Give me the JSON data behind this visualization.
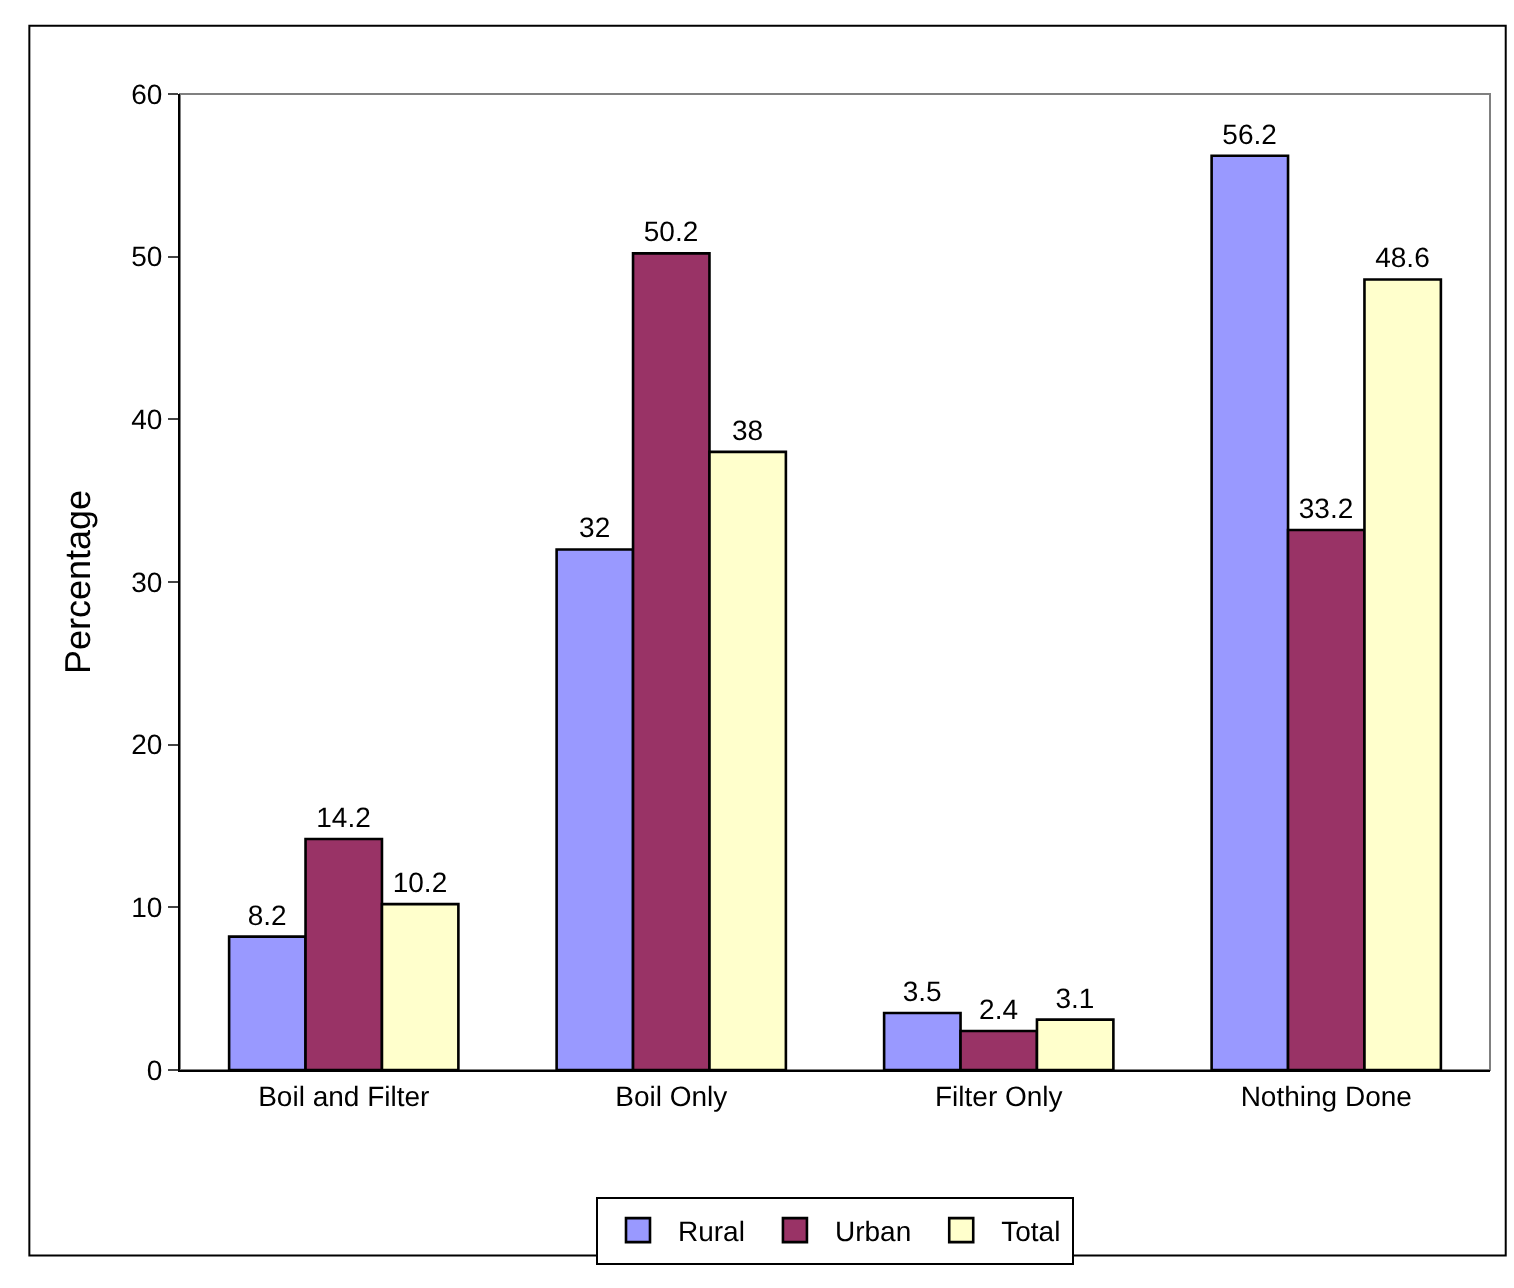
{
  "chart_data": {
    "type": "bar",
    "ylabel": "Percentage",
    "categories": [
      "Boil and Filter",
      "Boil Only",
      "Filter Only",
      "Nothing Done"
    ],
    "series": [
      {
        "name": "Rural",
        "color": "#9999ff",
        "values": [
          8.2,
          32,
          3.5,
          56.2
        ]
      },
      {
        "name": "Urban",
        "color": "#993366",
        "values": [
          14.2,
          50.2,
          2.4,
          33.2
        ]
      },
      {
        "name": "Total",
        "color": "#ffffcc",
        "values": [
          10.2,
          38,
          3.1,
          48.6
        ]
      }
    ],
    "ylim": [
      0,
      60
    ],
    "yticks": [
      0,
      10,
      20,
      30,
      40,
      50,
      60
    ],
    "data_labels": true,
    "grid": false,
    "legend": "bottom"
  }
}
